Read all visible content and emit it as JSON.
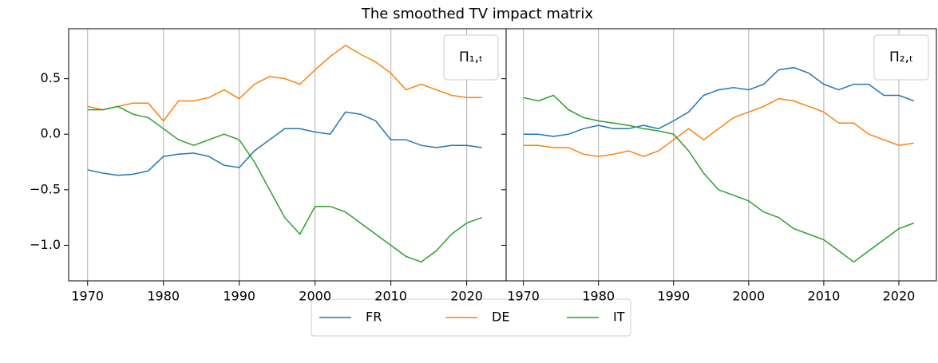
{
  "title": "The smoothed TV impact matrix",
  "legend": {
    "position": "lower center outside"
  },
  "chart_data": [
    {
      "type": "line",
      "annotation": "Π₁,ₜ",
      "grid": "x",
      "x": [
        1970,
        1972,
        1974,
        1976,
        1978,
        1980,
        1982,
        1984,
        1986,
        1988,
        1990,
        1992,
        1994,
        1996,
        1998,
        2000,
        2002,
        2004,
        2006,
        2008,
        2010,
        2012,
        2014,
        2016,
        2018,
        2020,
        2022
      ],
      "xlim": [
        1967.5,
        2025.2
      ],
      "xticks": [
        1970,
        1980,
        1990,
        2000,
        2010,
        2020
      ],
      "ylim": [
        -1.32,
        0.95
      ],
      "yticks": [
        {
          "value": -1.0,
          "label": "−1.0"
        },
        {
          "value": -0.5,
          "label": "−0.5"
        },
        {
          "value": 0.0,
          "label": "0.0"
        },
        {
          "value": 0.5,
          "label": "0.5"
        }
      ],
      "series": [
        {
          "name": "FR",
          "color": "#1f77b4",
          "values": [
            -0.32,
            -0.35,
            -0.37,
            -0.36,
            -0.33,
            -0.2,
            -0.18,
            -0.17,
            -0.2,
            -0.28,
            -0.3,
            -0.15,
            -0.05,
            0.05,
            0.05,
            0.02,
            0.0,
            0.2,
            0.18,
            0.12,
            -0.05,
            -0.05,
            -0.1,
            -0.12,
            -0.1,
            -0.1,
            -0.12
          ]
        },
        {
          "name": "DE",
          "color": "#ff7f0e",
          "values": [
            0.25,
            0.22,
            0.25,
            0.28,
            0.28,
            0.12,
            0.3,
            0.3,
            0.33,
            0.4,
            0.32,
            0.45,
            0.52,
            0.5,
            0.45,
            0.58,
            0.7,
            0.8,
            0.72,
            0.65,
            0.55,
            0.4,
            0.45,
            0.4,
            0.35,
            0.33,
            0.33
          ]
        },
        {
          "name": "IT",
          "color": "#2ca02c",
          "values": [
            0.22,
            0.22,
            0.25,
            0.18,
            0.15,
            0.05,
            -0.05,
            -0.1,
            -0.05,
            0.0,
            -0.05,
            -0.25,
            -0.5,
            -0.75,
            -0.9,
            -0.65,
            -0.65,
            -0.7,
            -0.8,
            -0.9,
            -1.0,
            -1.1,
            -1.15,
            -1.05,
            -0.9,
            -0.8,
            -0.75
          ]
        }
      ]
    },
    {
      "type": "line",
      "annotation": "Π₂,ₜ",
      "grid": "x",
      "x": [
        1970,
        1972,
        1974,
        1976,
        1978,
        1980,
        1982,
        1984,
        1986,
        1988,
        1990,
        1992,
        1994,
        1996,
        1998,
        2000,
        2002,
        2004,
        2006,
        2008,
        2010,
        2012,
        2014,
        2016,
        2018,
        2020,
        2022
      ],
      "xlim": [
        1967.7,
        2025.0
      ],
      "xticks": [
        1970,
        1980,
        1990,
        2000,
        2010,
        2020
      ],
      "ylim": [
        -1.32,
        0.95
      ],
      "series": [
        {
          "color": "#1f77b4",
          "values": [
            0.0,
            0.0,
            -0.02,
            0.0,
            0.05,
            0.08,
            0.05,
            0.05,
            0.08,
            0.05,
            0.12,
            0.2,
            0.35,
            0.4,
            0.42,
            0.4,
            0.45,
            0.58,
            0.6,
            0.55,
            0.45,
            0.4,
            0.45,
            0.45,
            0.35,
            0.35,
            0.3
          ]
        },
        {
          "color": "#ff7f0e",
          "values": [
            -0.1,
            -0.1,
            -0.12,
            -0.12,
            -0.18,
            -0.2,
            -0.18,
            -0.15,
            -0.2,
            -0.15,
            -0.05,
            0.05,
            -0.05,
            0.05,
            0.15,
            0.2,
            0.25,
            0.32,
            0.3,
            0.25,
            0.2,
            0.1,
            0.1,
            0.0,
            -0.05,
            -0.1,
            -0.08
          ]
        },
        {
          "color": "#2ca02c",
          "values": [
            0.33,
            0.3,
            0.35,
            0.22,
            0.15,
            0.12,
            0.1,
            0.08,
            0.05,
            0.03,
            0.0,
            -0.15,
            -0.35,
            -0.5,
            -0.55,
            -0.6,
            -0.7,
            -0.75,
            -0.85,
            -0.9,
            -0.95,
            -1.05,
            -1.15,
            -1.05,
            -0.95,
            -0.85,
            -0.8
          ]
        }
      ]
    }
  ]
}
